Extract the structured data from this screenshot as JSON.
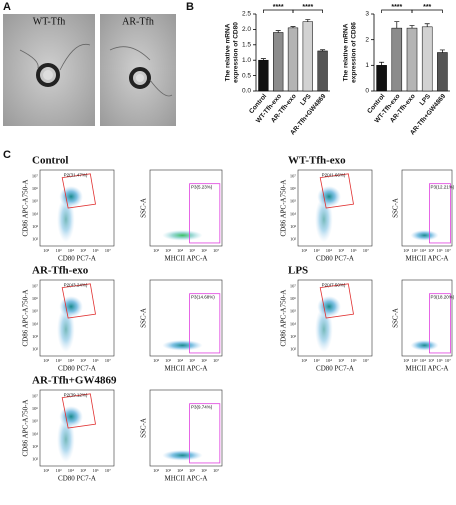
{
  "figure": {
    "panel_labels": [
      "A",
      "B",
      "C"
    ]
  },
  "tem": {
    "labels": [
      "WT-Tfh",
      "AR-Tfh"
    ]
  },
  "chart_data": [
    {
      "type": "bar",
      "y_label": [
        "The relative mRNA",
        "expression of CD80"
      ],
      "categories": [
        "Control",
        "WT-Tfh-exo",
        "AR-Tfh-exo",
        "LPS",
        "AR-Tfh+GW4869"
      ],
      "values": [
        1.0,
        1.9,
        2.05,
        2.25,
        1.3
      ],
      "errors": [
        0.05,
        0.06,
        0.04,
        0.07,
        0.04
      ],
      "colors": [
        "#111111",
        "#8c8c8c",
        "#b4b4b4",
        "#d2d2d2",
        "#555555"
      ],
      "ylim": [
        0,
        2.5
      ],
      "yticks": [
        {
          "value": 0,
          "label": "0.0"
        },
        0.5,
        {
          "value": 1,
          "label": "1.0"
        },
        1.5,
        {
          "value": 2,
          "label": "2.0"
        },
        2.5
      ],
      "annotations": [
        "****",
        "****"
      ]
    },
    {
      "type": "bar",
      "y_label": [
        "The relative mRNA",
        "expression of CD86"
      ],
      "categories": [
        "Control",
        "WT-Tfh-exo",
        "AR-Tfh-exo",
        "LPS",
        "AR-Tfh+GW4869"
      ],
      "values": [
        1.0,
        2.45,
        2.45,
        2.5,
        1.5
      ],
      "errors": [
        0.12,
        0.25,
        0.1,
        0.12,
        0.1
      ],
      "colors": [
        "#111111",
        "#8c8c8c",
        "#b4b4b4",
        "#d2d2d2",
        "#555555"
      ],
      "ylim": [
        0,
        3
      ],
      "yticks": [
        0,
        1,
        2,
        3
      ],
      "annotations": [
        "****",
        "***"
      ]
    }
  ],
  "flow": {
    "tick_labels": [
      "10²",
      "10³",
      "10⁴",
      "10⁵",
      "10⁶",
      "10⁷"
    ],
    "cd_x_label": "CD80 PC7-A",
    "cd_y_label": "CD86 APC-A750-A",
    "mhc_x_label": "MHCII APC-A",
    "mhc_y_label": "SSC-A",
    "plots": [
      {
        "title": "Control",
        "cd_gate": "P2(31.47%)",
        "mhc_gate": "P3(5.23%)"
      },
      {
        "title": "WT-Tfh-exo",
        "cd_gate": "P2(41.66%)",
        "mhc_gate": "P3(12.21%)"
      },
      {
        "title": "AR-Tfh-exo",
        "cd_gate": "P2(43.24%)",
        "mhc_gate": "P3(14.68%)"
      },
      {
        "title": "LPS",
        "cd_gate": "P2(47.50%)",
        "mhc_gate": "P3(18.20%)"
      },
      {
        "title": "AR-Tfh+GW4869",
        "cd_gate": "P2(39.12%)",
        "mhc_gate": "P3(9.74%)"
      }
    ]
  }
}
